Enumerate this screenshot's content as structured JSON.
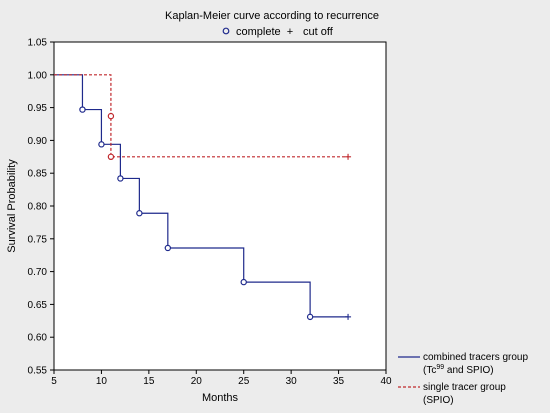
{
  "chart_data": {
    "type": "line",
    "title": "Kaplan-Meier curve according to recurrence",
    "xlabel": "Months",
    "ylabel": "Survival Probability",
    "xlim": [
      5,
      40
    ],
    "ylim": [
      0.55,
      1.05
    ],
    "x_ticks": [
      "5",
      "10",
      "15",
      "20",
      "25",
      "30",
      "35",
      "40"
    ],
    "y_ticks": [
      "0.55",
      "0.60",
      "0.65",
      "0.70",
      "0.75",
      "0.80",
      "0.85",
      "0.90",
      "0.95",
      "1.00",
      "1.05"
    ],
    "marker_legend": {
      "complete_label": "complete",
      "cutoff_label": "cut off",
      "complete_symbol": "o",
      "cutoff_symbol": "+"
    },
    "grid": false,
    "series": [
      {
        "name": "combined tracers group (Tc99 and SPIO)",
        "legend_line1": "combined tracers group",
        "legend_line2_pre": "(Tc",
        "legend_line2_sup": "99",
        "legend_line2_post": " and SPIO)",
        "color": "#1f2a8c",
        "style": "solid",
        "step": [
          [
            5,
            1.0
          ],
          [
            8,
            0.947
          ],
          [
            10,
            0.894
          ],
          [
            12,
            0.842
          ],
          [
            14,
            0.789
          ],
          [
            17,
            0.736
          ],
          [
            25,
            0.684
          ],
          [
            32,
            0.631
          ],
          [
            36,
            0.631
          ]
        ],
        "complete": [
          [
            8,
            0.947
          ],
          [
            10,
            0.894
          ],
          [
            12,
            0.842
          ],
          [
            14,
            0.789
          ],
          [
            17,
            0.736
          ],
          [
            25,
            0.684
          ],
          [
            32,
            0.631
          ]
        ],
        "censored": [
          [
            36,
            0.631
          ]
        ]
      },
      {
        "name": "single tracer group (SPIO)",
        "legend_line1": "single tracer group",
        "legend_line2": "(SPIO)",
        "color": "#c0282d",
        "style": "dashed",
        "step": [
          [
            5,
            1.0
          ],
          [
            11,
            0.875
          ],
          [
            36,
            0.875
          ]
        ],
        "complete": [
          [
            11,
            0.937
          ],
          [
            11,
            0.875
          ]
        ],
        "censored": [
          [
            36,
            0.875
          ]
        ]
      }
    ]
  },
  "colors": {
    "background": "#ececec",
    "plot_background": "#ffffff",
    "axis": "#000000"
  }
}
